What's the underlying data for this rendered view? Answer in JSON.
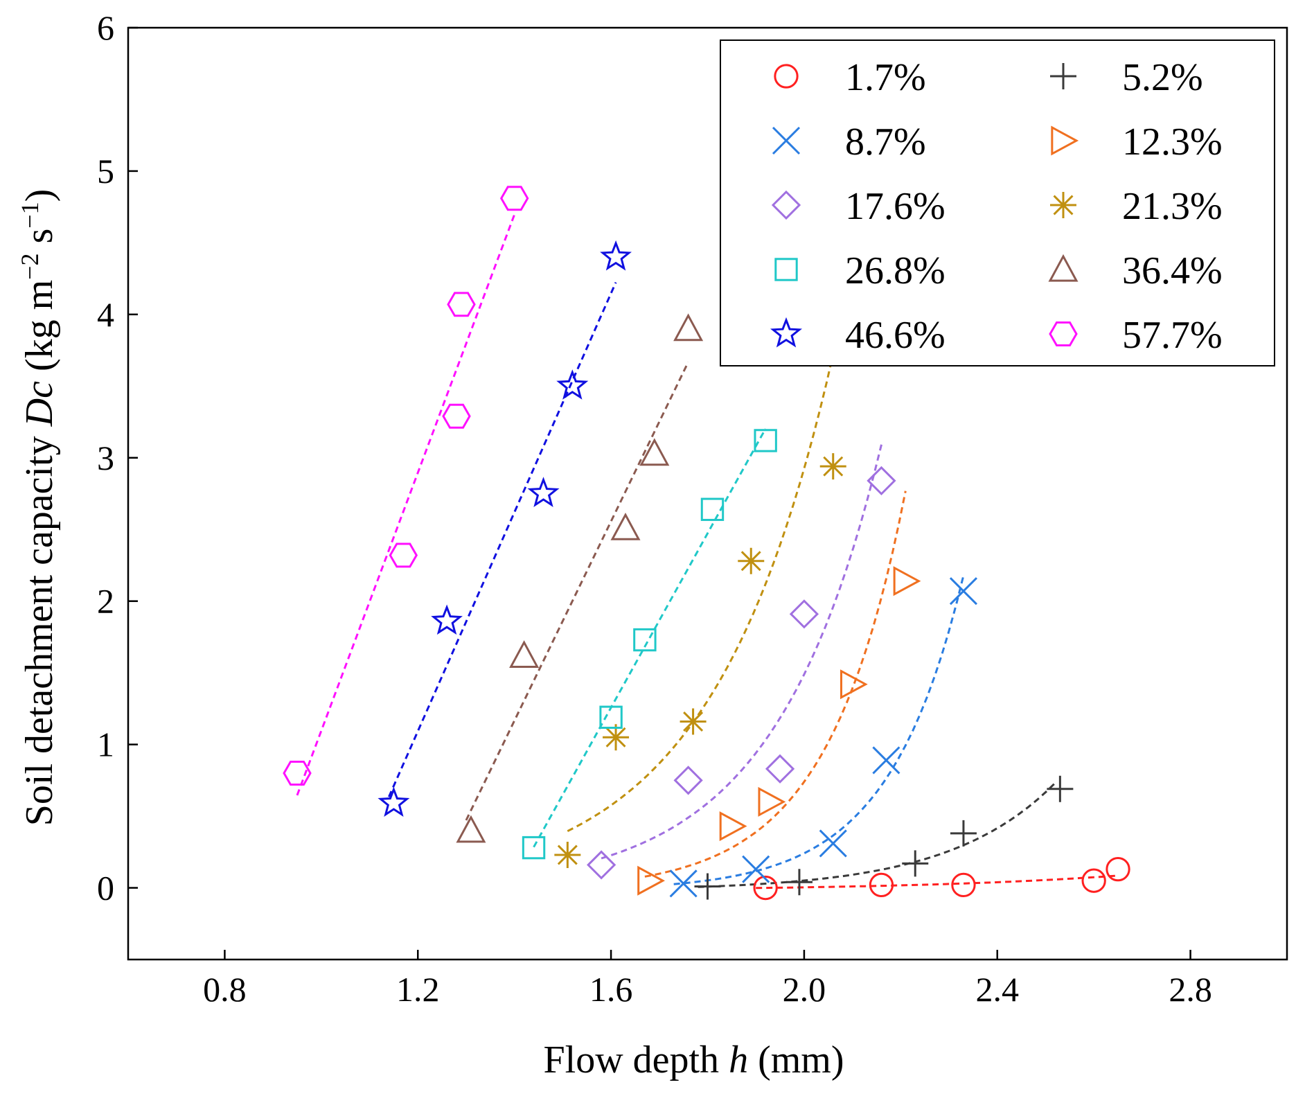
{
  "chart_data": {
    "type": "scatter",
    "title": "",
    "xlabel": {
      "prefix": "Flow depth ",
      "var": "h",
      "suffix": " (mm)"
    },
    "ylabel": {
      "prefix": "Soil detachment capacity ",
      "var": "Dc",
      "units_open": " (kg m",
      "sup1": "−2",
      "mid": " s",
      "sup2": "−1",
      "close": ")"
    },
    "xlim": [
      0.6,
      3.0
    ],
    "ylim": [
      -0.5,
      6.0
    ],
    "x_ticks": [
      0.8,
      1.2,
      1.6,
      2.0,
      2.4,
      2.8
    ],
    "x_tick_labels": [
      "0.8",
      "1.2",
      "1.6",
      "2.0",
      "2.4",
      "2.8"
    ],
    "y_ticks": [
      0,
      1,
      2,
      3,
      4,
      5,
      6
    ],
    "y_tick_labels": [
      "0",
      "1",
      "2",
      "3",
      "4",
      "5",
      "6"
    ],
    "grid": false,
    "legend_position": "top-right",
    "series": [
      {
        "name": "1.7%",
        "marker": "circle",
        "color": "#ff2020",
        "x": [
          1.92,
          2.16,
          2.33,
          2.6,
          2.65
        ],
        "y": [
          0.0,
          0.02,
          0.02,
          0.05,
          0.13
        ],
        "fit_x": [
          1.9,
          2.65
        ],
        "fit_curve": "exp"
      },
      {
        "name": "5.2%",
        "marker": "plus",
        "color": "#3a3a3a",
        "x": [
          1.8,
          1.99,
          2.23,
          2.33,
          2.53
        ],
        "y": [
          0.01,
          0.04,
          0.17,
          0.38,
          0.69
        ],
        "fit_x": [
          1.78,
          2.52
        ],
        "fit_curve": "exp"
      },
      {
        "name": "8.7%",
        "marker": "x",
        "color": "#2a7de1",
        "x": [
          1.75,
          1.9,
          2.06,
          2.17,
          2.33
        ],
        "y": [
          0.03,
          0.13,
          0.31,
          0.89,
          2.07
        ],
        "fit_x": [
          1.73,
          2.33
        ],
        "fit_curve": "exp"
      },
      {
        "name": "12.3%",
        "marker": "triangle-right",
        "color": "#f07020",
        "x": [
          1.68,
          1.85,
          1.93,
          2.1,
          2.21
        ],
        "y": [
          0.05,
          0.43,
          0.6,
          1.42,
          2.14
        ],
        "fit_x": [
          1.67,
          2.21
        ],
        "fit_curve": "exp"
      },
      {
        "name": "17.6%",
        "marker": "diamond",
        "color": "#a070e0",
        "x": [
          1.58,
          1.76,
          1.95,
          2.0,
          2.16
        ],
        "y": [
          0.16,
          0.75,
          0.83,
          1.91,
          2.84
        ],
        "fit_x": [
          1.58,
          2.16
        ],
        "fit_curve": "exp"
      },
      {
        "name": "21.3%",
        "marker": "asterisk",
        "color": "#c09010",
        "x": [
          1.51,
          1.61,
          1.77,
          1.89,
          2.06
        ],
        "y": [
          0.23,
          1.05,
          1.16,
          2.28,
          2.94
        ],
        "fit_x": [
          1.51,
          2.06
        ],
        "fit_curve": "exp"
      },
      {
        "name": "26.8%",
        "marker": "square",
        "color": "#20c8c8",
        "x": [
          1.44,
          1.6,
          1.67,
          1.81,
          1.92
        ],
        "y": [
          0.28,
          1.19,
          1.73,
          2.64,
          3.12
        ],
        "fit_x": [
          1.44,
          1.92
        ],
        "fit_curve": "linear"
      },
      {
        "name": "36.4%",
        "marker": "triangle-up",
        "color": "#8b5a50",
        "x": [
          1.31,
          1.42,
          1.63,
          1.69,
          1.76
        ],
        "y": [
          0.4,
          1.62,
          2.51,
          3.03,
          3.9
        ],
        "fit_x": [
          1.3,
          1.76
        ],
        "fit_curve": "linear"
      },
      {
        "name": "46.6%",
        "marker": "star",
        "color": "#1010e0",
        "x": [
          1.15,
          1.26,
          1.46,
          1.52,
          1.61
        ],
        "y": [
          0.59,
          1.86,
          2.75,
          3.5,
          4.4
        ],
        "fit_x": [
          1.14,
          1.61
        ],
        "fit_curve": "linear"
      },
      {
        "name": "57.7%",
        "marker": "hexagon",
        "color": "#ff10ff",
        "x": [
          0.95,
          1.17,
          1.28,
          1.29,
          1.4
        ],
        "y": [
          0.8,
          2.32,
          3.29,
          4.07,
          4.81
        ],
        "fit_x": [
          0.95,
          1.4
        ],
        "fit_curve": "linear"
      }
    ]
  }
}
